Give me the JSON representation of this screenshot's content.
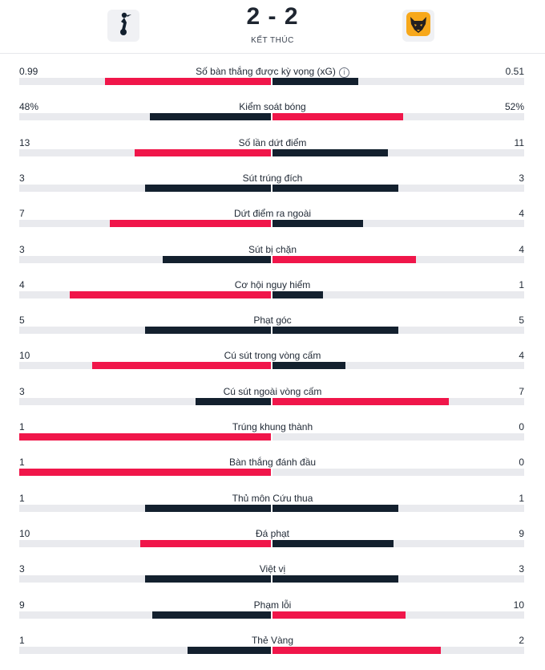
{
  "match": {
    "home_team_icon": "tottenham-crest-icon",
    "away_team_icon": "wolves-crest-icon",
    "score": "2 - 2",
    "status": "KẾT THÚC"
  },
  "colors": {
    "red": "#f0164a",
    "dark": "#13202e",
    "track": "#e9eaee"
  },
  "stats": [
    {
      "label": "Số bàn thắng được kỳ vọng (xG)",
      "home": "0.99",
      "away": "0.51",
      "home_share": 0.66,
      "away_share": 0.34,
      "home_color": "red",
      "away_color": "dark",
      "info": true
    },
    {
      "label": "Kiểm soát bóng",
      "home": "48%",
      "away": "52%",
      "home_share": 0.48,
      "away_share": 0.52,
      "home_color": "dark",
      "away_color": "red"
    },
    {
      "label": "Số lần dứt điểm",
      "home": "13",
      "away": "11",
      "home_share": 0.54,
      "away_share": 0.46,
      "home_color": "red",
      "away_color": "dark"
    },
    {
      "label": "Sút trúng đích",
      "home": "3",
      "away": "3",
      "home_share": 0.5,
      "away_share": 0.5,
      "home_color": "dark",
      "away_color": "dark"
    },
    {
      "label": "Dứt điểm ra ngoài",
      "home": "7",
      "away": "4",
      "home_share": 0.64,
      "away_share": 0.36,
      "home_color": "red",
      "away_color": "dark"
    },
    {
      "label": "Sút bị chặn",
      "home": "3",
      "away": "4",
      "home_share": 0.43,
      "away_share": 0.57,
      "home_color": "dark",
      "away_color": "red"
    },
    {
      "label": "Cơ hội nguy hiểm",
      "home": "4",
      "away": "1",
      "home_share": 0.8,
      "away_share": 0.2,
      "home_color": "red",
      "away_color": "dark"
    },
    {
      "label": "Phạt góc",
      "home": "5",
      "away": "5",
      "home_share": 0.5,
      "away_share": 0.5,
      "home_color": "dark",
      "away_color": "dark"
    },
    {
      "label": "Cú sút trong vòng cấm",
      "home": "10",
      "away": "4",
      "home_share": 0.71,
      "away_share": 0.29,
      "home_color": "red",
      "away_color": "dark"
    },
    {
      "label": "Cú sút ngoài vòng cấm",
      "home": "3",
      "away": "7",
      "home_share": 0.3,
      "away_share": 0.7,
      "home_color": "dark",
      "away_color": "red"
    },
    {
      "label": "Trúng khung thành",
      "home": "1",
      "away": "0",
      "home_share": 1.0,
      "away_share": 0.0,
      "home_color": "red",
      "away_color": "dark"
    },
    {
      "label": "Bàn thắng đánh đầu",
      "home": "1",
      "away": "0",
      "home_share": 1.0,
      "away_share": 0.0,
      "home_color": "red",
      "away_color": "dark"
    },
    {
      "label": "Thủ môn Cứu thua",
      "home": "1",
      "away": "1",
      "home_share": 0.5,
      "away_share": 0.5,
      "home_color": "dark",
      "away_color": "dark"
    },
    {
      "label": "Đá phạt",
      "home": "10",
      "away": "9",
      "home_share": 0.52,
      "away_share": 0.48,
      "home_color": "red",
      "away_color": "dark"
    },
    {
      "label": "Việt vị",
      "home": "3",
      "away": "3",
      "home_share": 0.5,
      "away_share": 0.5,
      "home_color": "dark",
      "away_color": "dark"
    },
    {
      "label": "Phạm lỗi",
      "home": "9",
      "away": "10",
      "home_share": 0.47,
      "away_share": 0.53,
      "home_color": "dark",
      "away_color": "red"
    },
    {
      "label": "Thẻ Vàng",
      "home": "1",
      "away": "2",
      "home_share": 0.33,
      "away_share": 0.67,
      "home_color": "dark",
      "away_color": "red"
    }
  ]
}
